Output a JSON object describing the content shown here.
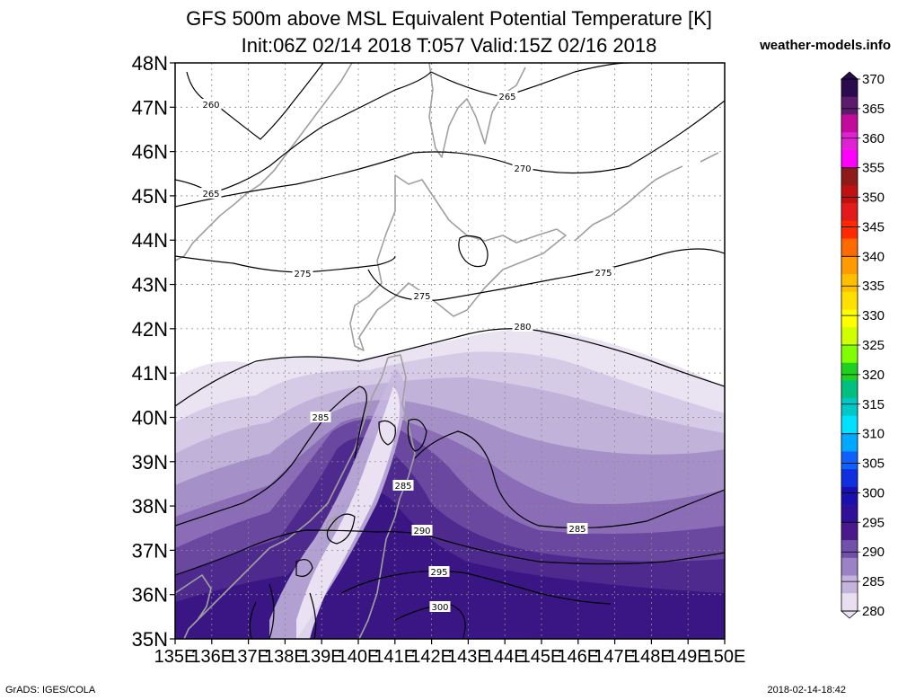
{
  "header": {
    "title_line1": "GFS 500m above MSL Equivalent Potential Temperature [K]",
    "title_line2": "Init:06Z 02/14 2018 T:057 Valid:15Z 02/16 2018",
    "site": "weather-models.info"
  },
  "footer": {
    "credit": "GrADS: IGES/COLA",
    "timestamp": "2018-02-14-18:42"
  },
  "map": {
    "lat_labels": [
      "48N",
      "47N",
      "46N",
      "45N",
      "44N",
      "43N",
      "42N",
      "41N",
      "40N",
      "39N",
      "38N",
      "37N",
      "36N",
      "35N"
    ],
    "lon_labels": [
      "135E",
      "136E",
      "137E",
      "138E",
      "139E",
      "140E",
      "141E",
      "142E",
      "143E",
      "144E",
      "145E",
      "146E",
      "147E",
      "148E",
      "149E",
      "150E"
    ],
    "contour_labels": [
      "260",
      "265",
      "265",
      "270",
      "275",
      "275",
      "275",
      "280",
      "285",
      "285",
      "285",
      "290",
      "295",
      "300"
    ]
  },
  "colorbar": {
    "labels": [
      "370",
      "365",
      "360",
      "355",
      "350",
      "345",
      "340",
      "335",
      "330",
      "325",
      "320",
      "315",
      "310",
      "305",
      "300",
      "295",
      "290",
      "285",
      "280"
    ],
    "colors": [
      "#2a0b4e",
      "#5c1b6c",
      "#c40a9a",
      "#e020d4",
      "#ff00ff",
      "#8e1a1a",
      "#c01010",
      "#e21a1a",
      "#ff2a00",
      "#ff6a00",
      "#ff9a00",
      "#ffc000",
      "#ffe000",
      "#ffff00",
      "#d0ff00",
      "#80ff00",
      "#20d020",
      "#00c080",
      "#00c8c8",
      "#00e0ff",
      "#00a8ff",
      "#1060ff",
      "#1030e0",
      "#1a10b0",
      "#30109a",
      "#4a1a8a",
      "#7050a8",
      "#9a82c4",
      "#c4b4dc",
      "#e8e0f0"
    ]
  }
}
